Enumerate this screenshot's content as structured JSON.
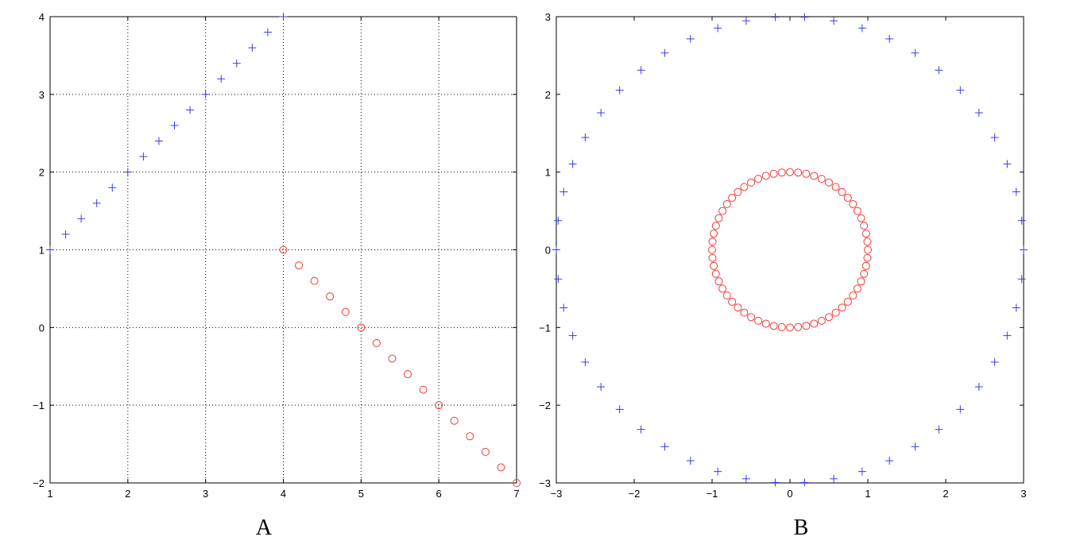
{
  "chart_data": [
    {
      "type": "scatter",
      "panel_label": "A",
      "xlim": [
        1,
        7
      ],
      "ylim": [
        -2,
        4
      ],
      "xticks": [
        "1",
        "2",
        "3",
        "4",
        "5",
        "6",
        "7"
      ],
      "yticks": [
        "−2",
        "−1",
        "0",
        "1",
        "2",
        "3",
        "4"
      ],
      "grid": true,
      "grid_style": "dotted",
      "series": [
        {
          "marker": "plus",
          "color": "#3a3af0",
          "points": [
            [
              1.0,
              1.0
            ],
            [
              1.2,
              1.2
            ],
            [
              1.4,
              1.4
            ],
            [
              1.6,
              1.6
            ],
            [
              1.8,
              1.8
            ],
            [
              2.0,
              2.0
            ],
            [
              2.2,
              2.2
            ],
            [
              2.4,
              2.4
            ],
            [
              2.6,
              2.6
            ],
            [
              2.8,
              2.8
            ],
            [
              3.0,
              3.0
            ],
            [
              3.2,
              3.2
            ],
            [
              3.4,
              3.4
            ],
            [
              3.6,
              3.6
            ],
            [
              3.8,
              3.8
            ],
            [
              4.0,
              4.0
            ]
          ]
        },
        {
          "marker": "circle",
          "color": "#f03a3a",
          "points": [
            [
              4.0,
              1.0
            ],
            [
              4.2,
              0.8
            ],
            [
              4.4,
              0.6
            ],
            [
              4.6,
              0.4
            ],
            [
              4.8,
              0.2
            ],
            [
              5.0,
              0.0
            ],
            [
              5.2,
              -0.2
            ],
            [
              5.4,
              -0.4
            ],
            [
              5.6,
              -0.6
            ],
            [
              5.8,
              -0.8
            ],
            [
              6.0,
              -1.0
            ],
            [
              6.2,
              -1.2
            ],
            [
              6.4,
              -1.4
            ],
            [
              6.6,
              -1.6
            ],
            [
              6.8,
              -1.8
            ],
            [
              7.0,
              -2.0
            ]
          ]
        }
      ]
    },
    {
      "type": "scatter",
      "panel_label": "B",
      "xlim": [
        -3,
        3
      ],
      "ylim": [
        -3,
        3
      ],
      "xticks": [
        "−3",
        "−2",
        "−1",
        "0",
        "1",
        "2",
        "3"
      ],
      "yticks": [
        "−3",
        "−2",
        "−1",
        "0",
        "1",
        "2",
        "3"
      ],
      "grid": false,
      "series": [
        {
          "marker": "plus",
          "color": "#3a3af0",
          "shape": "circle",
          "center": [
            0,
            0
          ],
          "radius": 3,
          "count": 50
        },
        {
          "marker": "circle",
          "color": "#f03a3a",
          "shape": "circle",
          "center": [
            0,
            0
          ],
          "radius": 1,
          "count": 60
        }
      ]
    }
  ]
}
